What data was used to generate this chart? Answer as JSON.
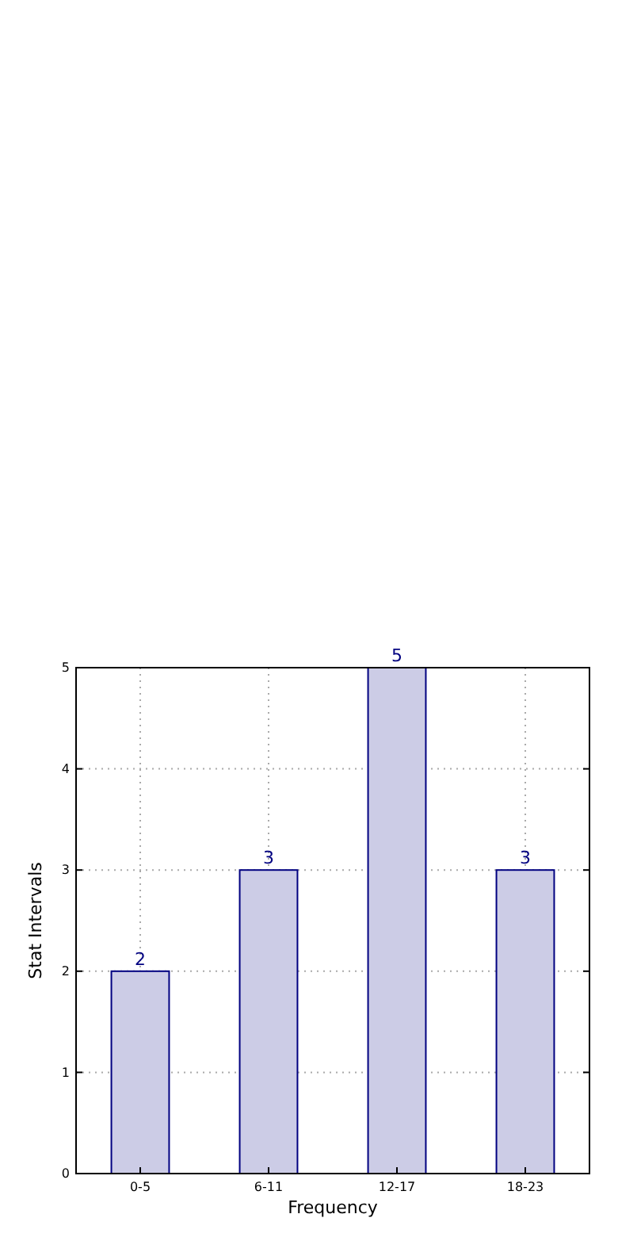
{
  "chart_data": {
    "type": "bar",
    "xlabel": "Frequency",
    "ylabel": "Stat Intervals",
    "categories": [
      "0-5",
      "6-11",
      "12-17",
      "18-23"
    ],
    "values": [
      2,
      3,
      5,
      3
    ],
    "color": "#cccce6",
    "ylim": [
      0,
      5
    ],
    "yticks": [
      0,
      1,
      2,
      3,
      4,
      5
    ],
    "grid": true,
    "data_labels": true
  }
}
